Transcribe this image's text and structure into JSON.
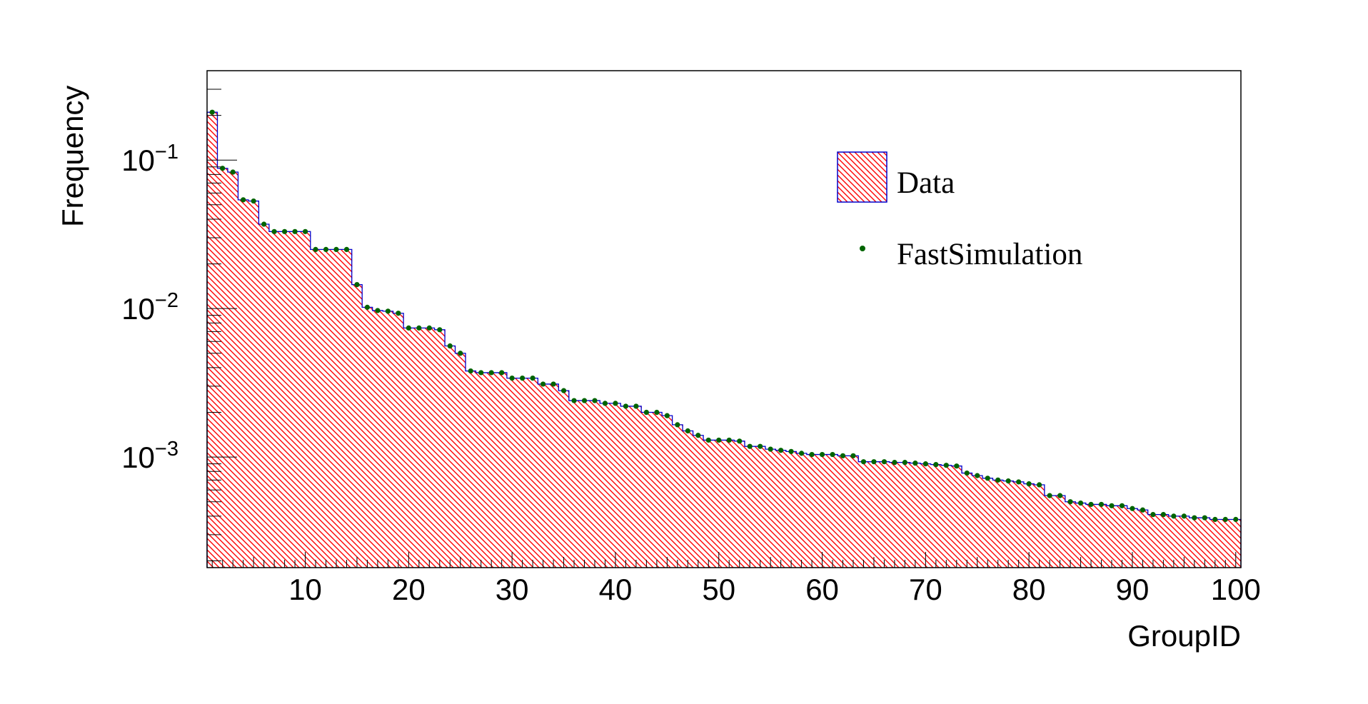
{
  "chart_data": {
    "type": "bar",
    "xlabel": "GroupID",
    "ylabel": "Frequency",
    "log_y": true,
    "xlim": [
      0.5,
      100.5
    ],
    "ylim": [
      0.00018,
      0.4
    ],
    "x_ticks": [
      10,
      20,
      30,
      40,
      50,
      60,
      70,
      80,
      90,
      100
    ],
    "y_ticks": [
      {
        "value": 0.1,
        "base": "10",
        "exp": "−1"
      },
      {
        "value": 0.01,
        "base": "10",
        "exp": "−2"
      },
      {
        "value": 0.001,
        "base": "10",
        "exp": "−3"
      }
    ],
    "legend": {
      "placement": "top-right",
      "entries": [
        {
          "label": "Data",
          "style": "hatched-box"
        },
        {
          "label": "FastSimulation",
          "style": "marker"
        }
      ]
    },
    "colors": {
      "data_hatch": "#ff0000",
      "data_line": "#0000cc",
      "marker": "#006400"
    },
    "categories": [
      1,
      2,
      3,
      4,
      5,
      6,
      7,
      8,
      9,
      10,
      11,
      12,
      13,
      14,
      15,
      16,
      17,
      18,
      19,
      20,
      21,
      22,
      23,
      24,
      25,
      26,
      27,
      28,
      29,
      30,
      31,
      32,
      33,
      34,
      35,
      36,
      37,
      38,
      39,
      40,
      41,
      42,
      43,
      44,
      45,
      46,
      47,
      48,
      49,
      50,
      51,
      52,
      53,
      54,
      55,
      56,
      57,
      58,
      59,
      60,
      61,
      62,
      63,
      64,
      65,
      66,
      67,
      68,
      69,
      70,
      71,
      72,
      73,
      74,
      75,
      76,
      77,
      78,
      79,
      80,
      81,
      82,
      83,
      84,
      85,
      86,
      87,
      88,
      89,
      90,
      91,
      92,
      93,
      94,
      95,
      96,
      97,
      98,
      99,
      100
    ],
    "series": [
      {
        "name": "Data",
        "values": [
          0.21,
          0.088,
          0.083,
          0.054,
          0.053,
          0.037,
          0.033,
          0.033,
          0.033,
          0.033,
          0.025,
          0.025,
          0.025,
          0.025,
          0.0145,
          0.0102,
          0.0097,
          0.0096,
          0.0093,
          0.0074,
          0.0074,
          0.0074,
          0.0072,
          0.0056,
          0.005,
          0.0038,
          0.0037,
          0.0037,
          0.0037,
          0.0034,
          0.0034,
          0.0034,
          0.0031,
          0.0031,
          0.0028,
          0.0024,
          0.0024,
          0.0024,
          0.0023,
          0.0023,
          0.0022,
          0.0022,
          0.002,
          0.002,
          0.0019,
          0.00165,
          0.0015,
          0.0014,
          0.0013,
          0.0013,
          0.0013,
          0.00128,
          0.00118,
          0.00118,
          0.00113,
          0.00111,
          0.00109,
          0.00106,
          0.00104,
          0.00104,
          0.00104,
          0.00102,
          0.00102,
          0.00093,
          0.00093,
          0.00093,
          0.00092,
          0.00092,
          0.00091,
          0.0009,
          0.00089,
          0.00088,
          0.00087,
          0.00078,
          0.00075,
          0.00072,
          0.0007,
          0.00069,
          0.00068,
          0.00066,
          0.00065,
          0.00055,
          0.00055,
          0.0005,
          0.00049,
          0.00048,
          0.00048,
          0.00047,
          0.00047,
          0.00045,
          0.00044,
          0.00041,
          0.00041,
          0.0004,
          0.0004,
          0.00039,
          0.00039,
          0.00038,
          0.00038,
          0.00038
        ]
      },
      {
        "name": "FastSimulation",
        "values": [
          0.21,
          0.088,
          0.083,
          0.054,
          0.053,
          0.037,
          0.033,
          0.033,
          0.033,
          0.033,
          0.025,
          0.025,
          0.025,
          0.025,
          0.0145,
          0.0102,
          0.0097,
          0.0096,
          0.0093,
          0.0074,
          0.0074,
          0.0074,
          0.0072,
          0.0056,
          0.005,
          0.0038,
          0.0037,
          0.0037,
          0.0037,
          0.0034,
          0.0034,
          0.0034,
          0.0031,
          0.0031,
          0.0028,
          0.0024,
          0.0024,
          0.0024,
          0.0023,
          0.0023,
          0.0022,
          0.0022,
          0.002,
          0.002,
          0.0019,
          0.00165,
          0.0015,
          0.0014,
          0.0013,
          0.0013,
          0.0013,
          0.00128,
          0.00118,
          0.00118,
          0.00113,
          0.00111,
          0.00109,
          0.00106,
          0.00104,
          0.00104,
          0.00104,
          0.00102,
          0.00102,
          0.00093,
          0.00093,
          0.00093,
          0.00092,
          0.00092,
          0.00091,
          0.0009,
          0.00089,
          0.00088,
          0.00087,
          0.00078,
          0.00075,
          0.00072,
          0.0007,
          0.00069,
          0.00068,
          0.00066,
          0.00065,
          0.00055,
          0.00055,
          0.0005,
          0.00049,
          0.00048,
          0.00048,
          0.00047,
          0.00047,
          0.00045,
          0.00044,
          0.00041,
          0.00041,
          0.0004,
          0.0004,
          0.00039,
          0.00039,
          0.00038,
          0.00038,
          0.00038
        ]
      }
    ]
  }
}
